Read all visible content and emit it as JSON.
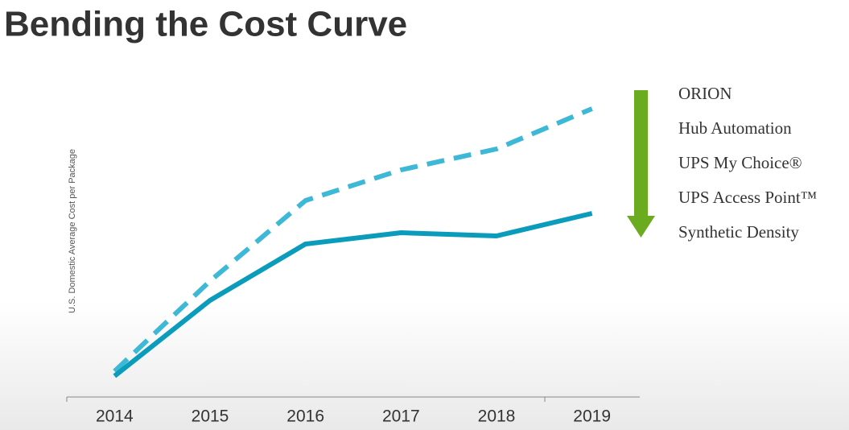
{
  "chart_data": {
    "type": "line",
    "title": "Bending the Cost Curve",
    "y_label": "U.S. Domestic Average Cost per Package",
    "categories": [
      "2014",
      "2015",
      "2016",
      "2017",
      "2018",
      "2019"
    ],
    "series": [
      {
        "color": "#3db8d6",
        "line_style": "dashed",
        "values": [
          8,
          36,
          61,
          70.5,
          77,
          89.5
        ]
      },
      {
        "color": "#0b9cbc",
        "line_style": "solid",
        "values": [
          6.5,
          30,
          47.5,
          51,
          50,
          57
        ]
      }
    ],
    "ylim": [
      0,
      100
    ],
    "annotations": [
      "ORION",
      "Hub Automation",
      "UPS My Choice®",
      "UPS Access Point™",
      "Synthetic Density"
    ]
  }
}
